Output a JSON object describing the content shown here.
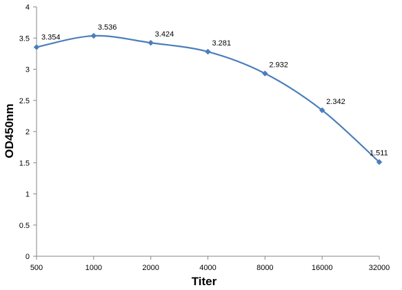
{
  "chart_data": {
    "type": "line",
    "title": "",
    "xlabel": "Titer",
    "ylabel": "OD450nm",
    "categories": [
      "500",
      "1000",
      "2000",
      "4000",
      "8000",
      "16000",
      "32000"
    ],
    "series": [
      {
        "values": [
          3.354,
          3.536,
          3.424,
          3.281,
          2.932,
          2.342,
          1.511
        ],
        "data_labels": [
          "3.354",
          "3.536",
          "3.424",
          "3.281",
          "2.932",
          "2.342",
          "1.511"
        ],
        "color": "#4a7ebb",
        "marker": "diamond",
        "smooth": true
      }
    ],
    "yticks": [
      "0",
      "0.5",
      "1",
      "1.5",
      "2",
      "2.5",
      "3",
      "3.5",
      "4"
    ],
    "ylim": [
      0,
      4
    ],
    "grid": false,
    "legend": "none"
  }
}
